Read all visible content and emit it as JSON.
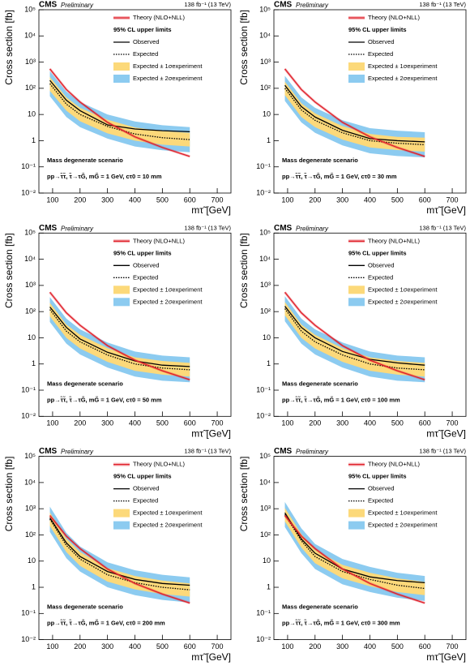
{
  "chart_data": [
    {
      "type": "line",
      "cms": "CMS",
      "preliminary": "Preliminary",
      "lumi": "138 fb⁻¹ (13 TeV)",
      "ylabel": "Cross section [fb]",
      "xlabel": "mτ̃ [GeV]",
      "legend_header": "95% CL upper limits",
      "scenario": "Mass degenerate scenario",
      "process": "pp→τ̃τ̃, τ̃→τG̃, mG̃ = 1 GeV, cτ0 = 10 mm",
      "log_y": true,
      "xlim": [
        50,
        750
      ],
      "ylim": [
        0.01,
        100000
      ],
      "xticks": [
        100,
        200,
        300,
        400,
        500,
        600,
        700
      ],
      "yticks": [
        {
          "value": 0.01,
          "label": "10⁻²"
        },
        {
          "value": 0.1,
          "label": "10⁻¹"
        },
        1,
        10,
        {
          "value": 100,
          "label": "10²"
        },
        {
          "value": 1000,
          "label": "10³"
        },
        {
          "value": 10000,
          "label": "10⁴"
        },
        {
          "value": 100000,
          "label": "10⁵"
        }
      ],
      "x": [
        90,
        150,
        200,
        300,
        400,
        500,
        600
      ],
      "series": [
        {
          "name": "Theory (NLO+NLL)",
          "color": "#e0202a",
          "values": [
            550,
            90,
            30,
            5,
            1.4,
            0.55,
            0.25
          ]
        },
        {
          "name": "Observed",
          "color": "#000000",
          "values": [
            200,
            35,
            14,
            4,
            2.8,
            2.4,
            2.2
          ]
        },
        {
          "name": "Expected",
          "color": "#000000",
          "dotted": true,
          "values": [
            150,
            25,
            10,
            3.5,
            1.8,
            1.3,
            1.1
          ]
        },
        {
          "name": "Expected ± 1σexperiment",
          "color": "#fcd97a",
          "lower": [
            80,
            14,
            5.5,
            1.9,
            1,
            0.7,
            0.6
          ],
          "upper": [
            270,
            45,
            18,
            6.3,
            3.2,
            2.3,
            2
          ]
        },
        {
          "name": "Expected ± 2σexperiment",
          "color": "#8ccbf0",
          "lower": [
            50,
            8,
            3.3,
            1.2,
            0.6,
            0.43,
            0.36
          ],
          "upper": [
            450,
            75,
            30,
            10,
            5.4,
            3.9,
            3.3
          ]
        }
      ]
    },
    {
      "type": "line",
      "cms": "CMS",
      "preliminary": "Preliminary",
      "lumi": "138 fb⁻¹ (13 TeV)",
      "ylabel": "Cross section [fb]",
      "xlabel": "mτ̃ [GeV]",
      "legend_header": "95% CL upper limits",
      "scenario": "Mass degenerate scenario",
      "process": "pp→τ̃τ̃, τ̃→τG̃, mG̃ = 1 GeV, cτ0 = 30 mm",
      "log_y": true,
      "xlim": [
        50,
        750
      ],
      "ylim": [
        0.01,
        100000
      ],
      "xticks": [
        100,
        200,
        300,
        400,
        500,
        600,
        700
      ],
      "yticks": [
        {
          "value": 0.01,
          "label": "10⁻²"
        },
        {
          "value": 0.1,
          "label": "10⁻¹"
        },
        1,
        10,
        {
          "value": 100,
          "label": "10²"
        },
        {
          "value": 1000,
          "label": "10³"
        },
        {
          "value": 10000,
          "label": "10⁴"
        },
        {
          "value": 100000,
          "label": "10⁵"
        }
      ],
      "x": [
        90,
        150,
        200,
        300,
        400,
        500,
        600
      ],
      "series": [
        {
          "name": "Theory (NLO+NLL)",
          "color": "#e0202a",
          "values": [
            550,
            90,
            30,
            5,
            1.4,
            0.55,
            0.25
          ]
        },
        {
          "name": "Observed",
          "color": "#000000",
          "values": [
            130,
            20,
            8,
            2.5,
            1.2,
            1,
            0.9
          ]
        },
        {
          "name": "Expected",
          "color": "#000000",
          "dotted": true,
          "values": [
            100,
            15,
            6,
            2,
            1,
            0.8,
            0.7
          ]
        },
        {
          "name": "Expected ± 1σexperiment",
          "color": "#fcd97a",
          "lower": [
            55,
            8,
            3.3,
            1.1,
            0.55,
            0.44,
            0.38
          ],
          "upper": [
            180,
            27,
            11,
            3.6,
            1.8,
            1.4,
            1.3
          ]
        },
        {
          "name": "Expected ± 2σexperiment",
          "color": "#8ccbf0",
          "lower": [
            33,
            5,
            2,
            0.66,
            0.33,
            0.26,
            0.23
          ],
          "upper": [
            300,
            45,
            18,
            6,
            3,
            2.4,
            2.1
          ]
        }
      ]
    },
    {
      "type": "line",
      "cms": "CMS",
      "preliminary": "Preliminary",
      "lumi": "138 fb⁻¹ (13 TeV)",
      "ylabel": "Cross section [fb]",
      "xlabel": "mτ̃ [GeV]",
      "legend_header": "95% CL upper limits",
      "scenario": "Mass degenerate scenario",
      "process": "pp→τ̃τ̃, τ̃→τG̃, mG̃ = 1 GeV, cτ0 = 50 mm",
      "log_y": true,
      "xlim": [
        50,
        750
      ],
      "ylim": [
        0.01,
        100000
      ],
      "xticks": [
        100,
        200,
        300,
        400,
        500,
        600,
        700
      ],
      "yticks": [
        {
          "value": 0.01,
          "label": "10⁻²"
        },
        {
          "value": 0.1,
          "label": "10⁻¹"
        },
        1,
        10,
        {
          "value": 100,
          "label": "10²"
        },
        {
          "value": 1000,
          "label": "10³"
        },
        {
          "value": 10000,
          "label": "10⁴"
        },
        {
          "value": 100000,
          "label": "10⁵"
        }
      ],
      "x": [
        90,
        150,
        200,
        300,
        400,
        500,
        600
      ],
      "series": [
        {
          "name": "Theory (NLO+NLL)",
          "color": "#e0202a",
          "values": [
            550,
            90,
            30,
            5,
            1.4,
            0.55,
            0.25
          ]
        },
        {
          "name": "Observed",
          "color": "#000000",
          "values": [
            150,
            25,
            9,
            2.8,
            1.3,
            0.9,
            0.8
          ]
        },
        {
          "name": "Expected",
          "color": "#000000",
          "dotted": true,
          "values": [
            120,
            18,
            7,
            2.2,
            1,
            0.7,
            0.6
          ]
        },
        {
          "name": "Expected ± 1σexperiment",
          "color": "#fcd97a",
          "lower": [
            66,
            10,
            3.9,
            1.2,
            0.55,
            0.39,
            0.33
          ],
          "upper": [
            216,
            32,
            13,
            4,
            1.8,
            1.3,
            1.1
          ]
        },
        {
          "name": "Expected ± 2σexperiment",
          "color": "#8ccbf0",
          "lower": [
            40,
            6,
            2.3,
            0.73,
            0.33,
            0.23,
            0.2
          ],
          "upper": [
            360,
            54,
            21,
            6.6,
            3,
            2.1,
            1.8
          ]
        }
      ]
    },
    {
      "type": "line",
      "cms": "CMS",
      "preliminary": "Preliminary",
      "lumi": "138 fb⁻¹ (13 TeV)",
      "ylabel": "Cross section [fb]",
      "xlabel": "mτ̃ [GeV]",
      "legend_header": "95% CL upper limits",
      "scenario": "Mass degenerate scenario",
      "process": "pp→τ̃τ̃, τ̃→τG̃, mG̃ = 1 GeV, cτ0 = 100 mm",
      "log_y": true,
      "xlim": [
        50,
        750
      ],
      "ylim": [
        0.01,
        100000
      ],
      "xticks": [
        100,
        200,
        300,
        400,
        500,
        600,
        700
      ],
      "yticks": [
        {
          "value": 0.01,
          "label": "10⁻²"
        },
        {
          "value": 0.1,
          "label": "10⁻¹"
        },
        1,
        10,
        {
          "value": 100,
          "label": "10²"
        },
        {
          "value": 1000,
          "label": "10³"
        },
        {
          "value": 10000,
          "label": "10⁴"
        },
        {
          "value": 100000,
          "label": "10⁵"
        }
      ],
      "x": [
        90,
        150,
        200,
        300,
        400,
        500,
        600
      ],
      "series": [
        {
          "name": "Theory (NLO+NLL)",
          "color": "#e0202a",
          "values": [
            550,
            90,
            30,
            5,
            1.4,
            0.55,
            0.25
          ]
        },
        {
          "name": "Observed",
          "color": "#000000",
          "values": [
            160,
            25,
            10,
            3,
            1.5,
            1.1,
            0.9
          ]
        },
        {
          "name": "Expected",
          "color": "#000000",
          "dotted": true,
          "values": [
            130,
            18,
            7,
            2.2,
            1,
            0.7,
            0.6
          ]
        },
        {
          "name": "Expected ± 1σexperiment",
          "color": "#fcd97a",
          "lower": [
            72,
            10,
            3.9,
            1.2,
            0.55,
            0.39,
            0.33
          ],
          "upper": [
            234,
            32,
            13,
            4,
            1.8,
            1.3,
            1.1
          ]
        },
        {
          "name": "Expected ± 2σexperiment",
          "color": "#8ccbf0",
          "lower": [
            43,
            6,
            2.3,
            0.73,
            0.33,
            0.23,
            0.2
          ],
          "upper": [
            390,
            54,
            21,
            6.6,
            3,
            2.1,
            1.8
          ]
        }
      ]
    },
    {
      "type": "line",
      "cms": "CMS",
      "preliminary": "Preliminary",
      "lumi": "138 fb⁻¹ (13 TeV)",
      "ylabel": "Cross section [fb]",
      "xlabel": "mτ̃ [GeV]",
      "legend_header": "95% CL upper limits",
      "scenario": "Mass degenerate scenario",
      "process": "pp→τ̃τ̃, τ̃→τG̃, mG̃ = 1 GeV, cτ0 = 200 mm",
      "log_y": true,
      "xlim": [
        50,
        750
      ],
      "ylim": [
        0.01,
        100000
      ],
      "xticks": [
        100,
        200,
        300,
        400,
        500,
        600,
        700
      ],
      "yticks": [
        {
          "value": 0.01,
          "label": "10⁻²"
        },
        {
          "value": 0.1,
          "label": "10⁻¹"
        },
        1,
        10,
        {
          "value": 100,
          "label": "10²"
        },
        {
          "value": 1000,
          "label": "10³"
        },
        {
          "value": 10000,
          "label": "10⁴"
        },
        {
          "value": 100000,
          "label": "10⁵"
        }
      ],
      "x": [
        90,
        150,
        200,
        300,
        400,
        500,
        600
      ],
      "series": [
        {
          "name": "Theory (NLO+NLL)",
          "color": "#e0202a",
          "values": [
            550,
            90,
            30,
            5,
            1.4,
            0.55,
            0.25
          ]
        },
        {
          "name": "Observed",
          "color": "#000000",
          "values": [
            450,
            50,
            15,
            4,
            2,
            1.4,
            1.2
          ]
        },
        {
          "name": "Expected",
          "color": "#000000",
          "dotted": true,
          "values": [
            400,
            40,
            12,
            3,
            1.5,
            1,
            0.8
          ]
        },
        {
          "name": "Expected ± 1σexperiment",
          "color": "#fcd97a",
          "lower": [
            220,
            22,
            6.6,
            1.65,
            0.83,
            0.55,
            0.44
          ],
          "upper": [
            720,
            72,
            22,
            5.4,
            2.7,
            1.8,
            1.4
          ]
        },
        {
          "name": "Expected ± 2σexperiment",
          "color": "#8ccbf0",
          "lower": [
            130,
            13,
            4,
            1,
            0.5,
            0.33,
            0.26
          ],
          "upper": [
            1200,
            120,
            36,
            9,
            4.5,
            3,
            2.4
          ]
        }
      ]
    },
    {
      "type": "line",
      "cms": "CMS",
      "preliminary": "Preliminary",
      "lumi": "138 fb⁻¹ (13 TeV)",
      "ylabel": "Cross section [fb]",
      "xlabel": "mτ̃ [GeV]",
      "legend_header": "95% CL upper limits",
      "scenario": "Mass degenerate scenario",
      "process": "pp→τ̃τ̃, τ̃→τG̃, mG̃ = 1 GeV, cτ0 = 300 mm",
      "log_y": true,
      "xlim": [
        50,
        750
      ],
      "ylim": [
        0.01,
        100000
      ],
      "xticks": [
        100,
        200,
        300,
        400,
        500,
        600,
        700
      ],
      "yticks": [
        {
          "value": 0.01,
          "label": "10⁻²"
        },
        {
          "value": 0.1,
          "label": "10⁻¹"
        },
        1,
        10,
        {
          "value": 100,
          "label": "10²"
        },
        {
          "value": 1000,
          "label": "10³"
        },
        {
          "value": 10000,
          "label": "10⁴"
        },
        {
          "value": 100000,
          "label": "10⁵"
        }
      ],
      "x": [
        90,
        150,
        200,
        300,
        400,
        500,
        600
      ],
      "series": [
        {
          "name": "Theory (NLO+NLL)",
          "color": "#e0202a",
          "values": [
            550,
            90,
            30,
            5,
            1.4,
            0.55,
            0.25
          ]
        },
        {
          "name": "Observed",
          "color": "#000000",
          "values": [
            700,
            70,
            20,
            5,
            2.5,
            1.8,
            1.5
          ]
        },
        {
          "name": "Expected",
          "color": "#000000",
          "dotted": true,
          "values": [
            600,
            60,
            15,
            4,
            2,
            1.2,
            0.9
          ]
        },
        {
          "name": "Expected ± 1σexperiment",
          "color": "#fcd97a",
          "lower": [
            330,
            33,
            8.3,
            2.2,
            1.1,
            0.66,
            0.5
          ],
          "upper": [
            1080,
            108,
            27,
            7.2,
            3.6,
            2.2,
            1.6
          ]
        },
        {
          "name": "Expected ± 2σexperiment",
          "color": "#8ccbf0",
          "lower": [
            200,
            20,
            5,
            1.3,
            0.66,
            0.4,
            0.3
          ],
          "upper": [
            1800,
            180,
            45,
            12,
            6,
            3.6,
            2.7
          ]
        }
      ]
    }
  ]
}
